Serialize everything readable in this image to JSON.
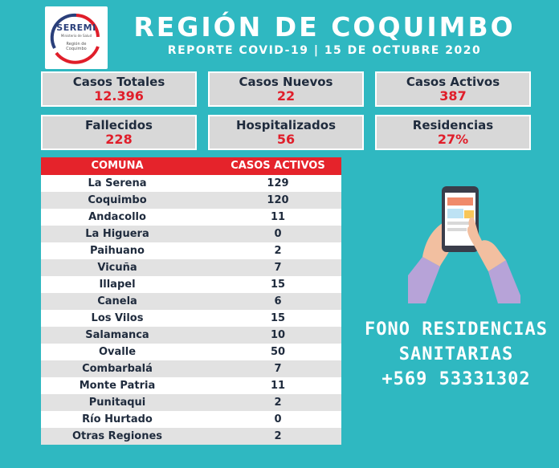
{
  "logo": {
    "brand": "SEREMI",
    "line1": "Ministerio de Salud",
    "line2": "Región de",
    "line3": "Coquimbo"
  },
  "header": {
    "title": "REGIÓN DE COQUIMBO",
    "subtitle": "REPORTE COVID-19 | 15 DE OCTUBRE 2020"
  },
  "stats": [
    {
      "label": "Casos Totales",
      "value": "12.396"
    },
    {
      "label": "Casos Nuevos",
      "value": "22"
    },
    {
      "label": "Casos Activos",
      "value": "387"
    },
    {
      "label": "Fallecidos",
      "value": "228"
    },
    {
      "label": "Hospitalizados",
      "value": "56"
    },
    {
      "label": "Residencias",
      "value": "27%"
    }
  ],
  "table": {
    "headers": [
      "COMUNA",
      "CASOS ACTIVOS"
    ],
    "rows": [
      {
        "comuna": "La Serena",
        "casos": "129"
      },
      {
        "comuna": "Coquimbo",
        "casos": "120"
      },
      {
        "comuna": "Andacollo",
        "casos": "11"
      },
      {
        "comuna": "La Higuera",
        "casos": "0"
      },
      {
        "comuna": "Paihuano",
        "casos": "2"
      },
      {
        "comuna": "Vicuña",
        "casos": "7"
      },
      {
        "comuna": "Illapel",
        "casos": "15"
      },
      {
        "comuna": "Canela",
        "casos": "6"
      },
      {
        "comuna": "Los Vilos",
        "casos": "15"
      },
      {
        "comuna": "Salamanca",
        "casos": "10"
      },
      {
        "comuna": "Ovalle",
        "casos": "50"
      },
      {
        "comuna": "Combarbalá",
        "casos": "7"
      },
      {
        "comuna": "Monte Patria",
        "casos": "11"
      },
      {
        "comuna": "Punitaqui",
        "casos": "2"
      },
      {
        "comuna": "Río Hurtado",
        "casos": "0"
      },
      {
        "comuna": "Otras Regiones",
        "casos": "2"
      }
    ]
  },
  "contact": {
    "line1": "FONO RESIDENCIAS",
    "line2": "SANITARIAS",
    "phone": "+569 53331302"
  },
  "icons": {
    "logo": "seremi-logo-icon",
    "phone": "hand-holding-phone-icon"
  }
}
